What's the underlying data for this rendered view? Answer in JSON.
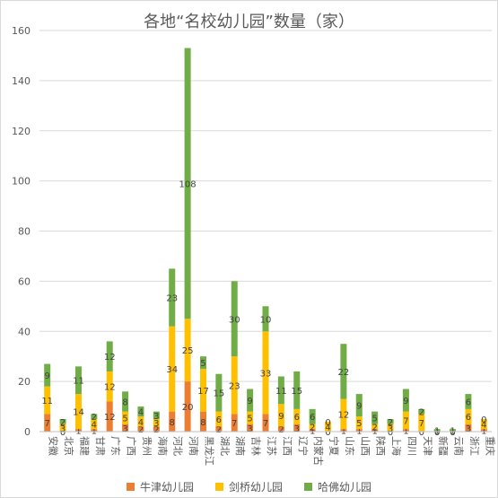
{
  "chart_data": {
    "type": "bar",
    "stacked": true,
    "title": "各地“名校幼儿园”数量（家）",
    "ylim": [
      0,
      160
    ],
    "yticks": [
      0,
      20,
      40,
      60,
      80,
      100,
      120,
      140,
      160
    ],
    "grid": true,
    "legend_position": "bottom",
    "categories": [
      "安徽",
      "北京",
      "福建",
      "甘肃",
      "广东",
      "广西",
      "贵州",
      "海南",
      "河北",
      "河南",
      "黑龙江",
      "湖北",
      "湖南",
      "吉林",
      "江苏",
      "江西",
      "辽宁",
      "内蒙古",
      "宁夏",
      "山东",
      "山西",
      "陕西",
      "上海",
      "四川",
      "天津",
      "新疆",
      "云南",
      "浙江",
      "重庆"
    ],
    "series": [
      {
        "name": "牛津幼儿园",
        "color": "#ED7D31",
        "values": [
          7,
          0,
          1,
          1,
          12,
          3,
          2,
          2,
          8,
          20,
          8,
          2,
          7,
          3,
          7,
          2,
          3,
          1,
          0,
          1,
          1,
          1,
          0,
          1,
          0,
          0,
          0,
          3,
          1
        ]
      },
      {
        "name": "剑桥幼儿园",
        "color": "#FFC000",
        "values": [
          11,
          3,
          14,
          4,
          12,
          5,
          4,
          3,
          34,
          25,
          17,
          6,
          23,
          5,
          33,
          9,
          6,
          2,
          4,
          12,
          5,
          2,
          3,
          7,
          7,
          0,
          0,
          6,
          4
        ]
      },
      {
        "name": "哈佛幼儿园",
        "color": "#70AD47",
        "values": [
          9,
          2,
          11,
          2,
          12,
          8,
          4,
          3,
          23,
          108,
          5,
          15,
          30,
          9,
          10,
          11,
          15,
          6,
          0,
          22,
          9,
          5,
          2,
          9,
          2,
          1,
          1,
          6,
          0
        ]
      }
    ]
  }
}
